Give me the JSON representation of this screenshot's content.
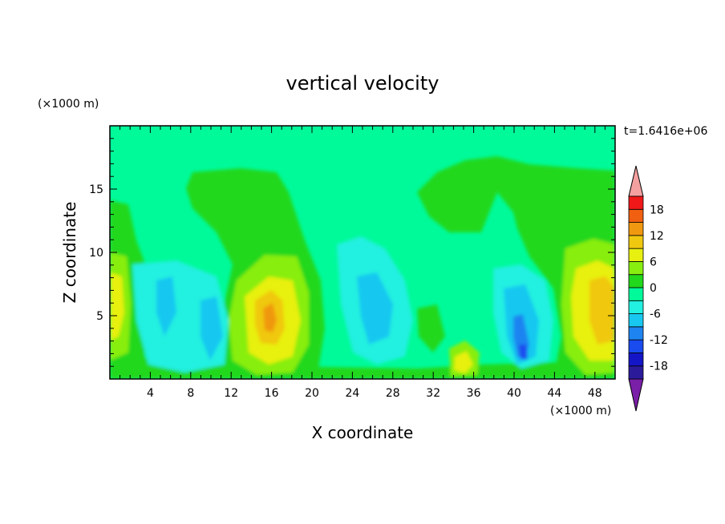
{
  "chart_data": {
    "type": "heatmap",
    "title": "vertical velocity",
    "xlabel": "X coordinate",
    "ylabel": "Z coordinate",
    "x_unit_label": "(×1000 m)",
    "y_unit_label": "(×1000 m)",
    "time_label": "t=1.6416e+06",
    "xlim": [
      0,
      50
    ],
    "ylim": [
      0,
      20
    ],
    "x_ticks": [
      "4",
      "8",
      "12",
      "16",
      "20",
      "24",
      "28",
      "32",
      "36",
      "40",
      "44",
      "48"
    ],
    "y_ticks": [
      "5",
      "10",
      "15"
    ],
    "colorbar": {
      "tick_labels": [
        "18",
        "12",
        "6",
        "0",
        "-6",
        "-12",
        "-18"
      ],
      "levels": [
        -21,
        -18,
        -15,
        -12,
        -9,
        -6,
        -3,
        0,
        3,
        6,
        9,
        12,
        15,
        18,
        21
      ],
      "colors": [
        "#7a1fa8",
        "#2b1b9a",
        "#1515c8",
        "#1a4bef",
        "#1e84f0",
        "#18c8f0",
        "#22f0e0",
        "#00fa9a",
        "#22d81c",
        "#88ee10",
        "#e8f010",
        "#f0c810",
        "#f09810",
        "#f06010",
        "#f01818",
        "#f4a0a0"
      ]
    },
    "features": [
      {
        "kind": "updraft",
        "x": 0.8,
        "z": 6.0,
        "max": 9
      },
      {
        "kind": "downdraft",
        "x": 6.5,
        "z": 5.0,
        "min": -5
      },
      {
        "kind": "downdraft",
        "x": 10.0,
        "z": 4.0,
        "min": -5
      },
      {
        "kind": "updraft",
        "x": 16.0,
        "z": 5.0,
        "max": 13
      },
      {
        "kind": "downdraft",
        "x": 26.0,
        "z": 5.5,
        "min": -6
      },
      {
        "kind": "updraft",
        "x": 34.5,
        "z": 1.5,
        "max": 7
      },
      {
        "kind": "downdraft",
        "x": 41.0,
        "z": 2.5,
        "min": -10
      },
      {
        "kind": "updraft",
        "x": 48.5,
        "z": 5.0,
        "max": 11
      }
    ]
  }
}
